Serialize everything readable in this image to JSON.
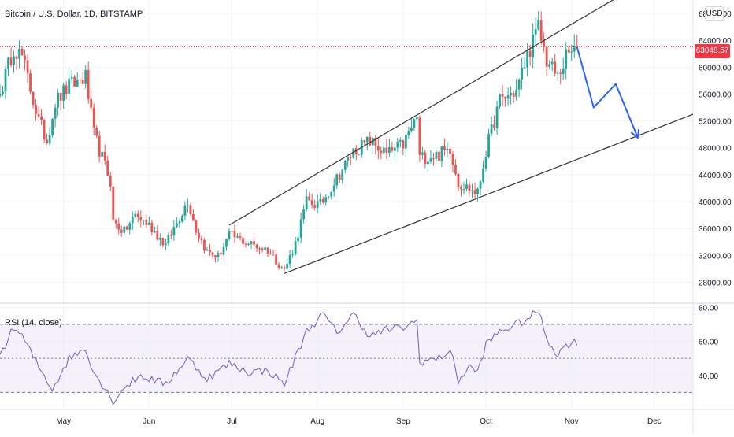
{
  "header": {
    "title": "Bitcoin / U.S. Dollar, 1D, BITSTAMP",
    "currency_button": "USD"
  },
  "last_price": "63048.57",
  "colors": {
    "up": "#26a69a",
    "down": "#ef5350",
    "rsi_line": "#7e57c2",
    "rsi_band": "#ede7f6",
    "projection": "#2962ff",
    "channel": "#333333",
    "last_price_line": "#f23645"
  },
  "chart_data": [
    {
      "type": "candlestick",
      "title": "Bitcoin / U.S. Dollar, 1D, BITSTAMP",
      "y_ticks": [
        "28000.00",
        "32000.00",
        "36000.00",
        "40000.00",
        "44000.00",
        "48000.00",
        "52000.00",
        "56000.00",
        "60000.00",
        "64000.00",
        "68000.00"
      ],
      "ylim": [
        25000,
        70000
      ],
      "x_ticks": [
        {
          "label": "May",
          "date": "2021-05-01"
        },
        {
          "label": "Jun",
          "date": "2021-06-01"
        },
        {
          "label": "Jul",
          "date": "2021-07-01"
        },
        {
          "label": "Aug",
          "date": "2021-08-01"
        },
        {
          "label": "Sep",
          "date": "2021-09-01"
        },
        {
          "label": "Oct",
          "date": "2021-10-01"
        },
        {
          "label": "Nov",
          "date": "2021-11-01"
        },
        {
          "label": "Dec",
          "date": "2021-12-01"
        }
      ],
      "x_range": [
        "2021-04-08",
        "2021-12-15"
      ],
      "close_path": [
        [
          "2021-04-08",
          56000
        ],
        [
          "2021-04-13",
          63000
        ],
        [
          "2021-04-16",
          61500
        ],
        [
          "2021-04-22",
          52000
        ],
        [
          "2021-04-25",
          49000
        ],
        [
          "2021-04-28",
          54800
        ],
        [
          "2021-05-03",
          57200
        ],
        [
          "2021-05-09",
          58500
        ],
        [
          "2021-05-12",
          50000
        ],
        [
          "2021-05-18",
          43000
        ],
        [
          "2021-05-19",
          37000
        ],
        [
          "2021-05-23",
          35500
        ],
        [
          "2021-05-27",
          38000
        ],
        [
          "2021-06-01",
          36500
        ],
        [
          "2021-06-07",
          33500
        ],
        [
          "2021-06-15",
          40200
        ],
        [
          "2021-06-18",
          35800
        ],
        [
          "2021-06-22",
          32500
        ],
        [
          "2021-06-26",
          31800
        ],
        [
          "2021-06-30",
          35000
        ],
        [
          "2021-07-07",
          33800
        ],
        [
          "2021-07-14",
          32800
        ],
        [
          "2021-07-20",
          29800
        ],
        [
          "2021-07-24",
          33800
        ],
        [
          "2021-07-28",
          40000
        ],
        [
          "2021-08-02",
          39500
        ],
        [
          "2021-08-08",
          43500
        ],
        [
          "2021-08-14",
          47500
        ],
        [
          "2021-08-20",
          49000
        ],
        [
          "2021-08-26",
          47000
        ],
        [
          "2021-09-01",
          48500
        ],
        [
          "2021-09-06",
          52600
        ],
        [
          "2021-09-07",
          46500
        ],
        [
          "2021-09-14",
          47000
        ],
        [
          "2021-09-18",
          48000
        ],
        [
          "2021-09-21",
          42800
        ],
        [
          "2021-09-28",
          41200
        ],
        [
          "2021-10-01",
          47500
        ],
        [
          "2021-10-06",
          55000
        ],
        [
          "2021-10-12",
          56500
        ],
        [
          "2021-10-16",
          61800
        ],
        [
          "2021-10-20",
          65800
        ],
        [
          "2021-10-23",
          61000
        ],
        [
          "2021-10-27",
          58500
        ],
        [
          "2021-10-30",
          61500
        ],
        [
          "2021-11-03",
          63048.57
        ]
      ],
      "annotations": {
        "channel_upper": [
          [
            "2021-06-30",
            36500
          ],
          [
            "2021-12-15",
            77000
          ]
        ],
        "channel_lower": [
          [
            "2021-07-20",
            29300
          ],
          [
            "2021-12-15",
            53000
          ]
        ],
        "projection_path": [
          [
            "2021-11-03",
            63000
          ],
          [
            "2021-11-09",
            54000
          ],
          [
            "2021-11-17",
            57500
          ],
          [
            "2021-11-25",
            49500
          ]
        ],
        "last_price_line": 63048.57
      }
    },
    {
      "type": "line",
      "title": "RSI (14, close)",
      "y_ticks": [
        "40.00",
        "60.00",
        "80.00"
      ],
      "ylim": [
        20,
        82
      ],
      "bands": {
        "upper": 70,
        "middle": 50,
        "lower": 30
      },
      "series": [
        {
          "values": [
            [
              "2021-04-08",
              52
            ],
            [
              "2021-04-13",
              68
            ],
            [
              "2021-04-16",
              63
            ],
            [
              "2021-04-22",
              45
            ],
            [
              "2021-04-27",
              32
            ],
            [
              "2021-05-03",
              50
            ],
            [
              "2021-05-09",
              56
            ],
            [
              "2021-05-12",
              42
            ],
            [
              "2021-05-19",
              25
            ],
            [
              "2021-05-23",
              33
            ],
            [
              "2021-05-29",
              40
            ],
            [
              "2021-06-03",
              37
            ],
            [
              "2021-06-07",
              35
            ],
            [
              "2021-06-15",
              50
            ],
            [
              "2021-06-22",
              38
            ],
            [
              "2021-06-30",
              47
            ],
            [
              "2021-07-07",
              42
            ],
            [
              "2021-07-14",
              43
            ],
            [
              "2021-07-20",
              35
            ],
            [
              "2021-07-28",
              66
            ],
            [
              "2021-08-03",
              76
            ],
            [
              "2021-08-08",
              65
            ],
            [
              "2021-08-14",
              76
            ],
            [
              "2021-08-20",
              63
            ],
            [
              "2021-08-26",
              67
            ],
            [
              "2021-09-01",
              68
            ],
            [
              "2021-09-06",
              72
            ],
            [
              "2021-09-07",
              48
            ],
            [
              "2021-09-14",
              50
            ],
            [
              "2021-09-18",
              55
            ],
            [
              "2021-09-21",
              37
            ],
            [
              "2021-09-25",
              45
            ],
            [
              "2021-09-28",
              42
            ],
            [
              "2021-10-01",
              58
            ],
            [
              "2021-10-06",
              66
            ],
            [
              "2021-10-12",
              70
            ],
            [
              "2021-10-16",
              73
            ],
            [
              "2021-10-20",
              78
            ],
            [
              "2021-10-23",
              62
            ],
            [
              "2021-10-27",
              52
            ],
            [
              "2021-10-30",
              58
            ],
            [
              "2021-11-03",
              60
            ]
          ]
        }
      ]
    }
  ]
}
